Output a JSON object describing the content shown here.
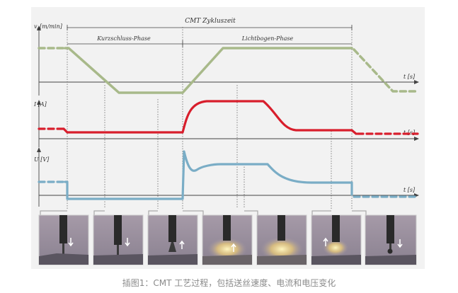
{
  "top_labels": {
    "cycle": "CMT Zykluszeit",
    "short_circuit": "Kurzschluss-Phase",
    "arc": "Lichtbogen-Phase"
  },
  "panels": [
    {
      "ylabel": "v",
      "ylabel_sub": "d",
      "ylabel_unit": "[m/min]",
      "time_label": "t [s]",
      "color": "#a8b98a"
    },
    {
      "ylabel": "I [A]",
      "time_label": "t [s]",
      "color": "#d81e2c"
    },
    {
      "ylabel": "U [V]",
      "time_label": "t [s]",
      "color": "#7aadc6"
    }
  ],
  "photo_count": 7,
  "caption": "插图1：CMT 工艺过程，包括送丝速度、电流和电压变化"
}
